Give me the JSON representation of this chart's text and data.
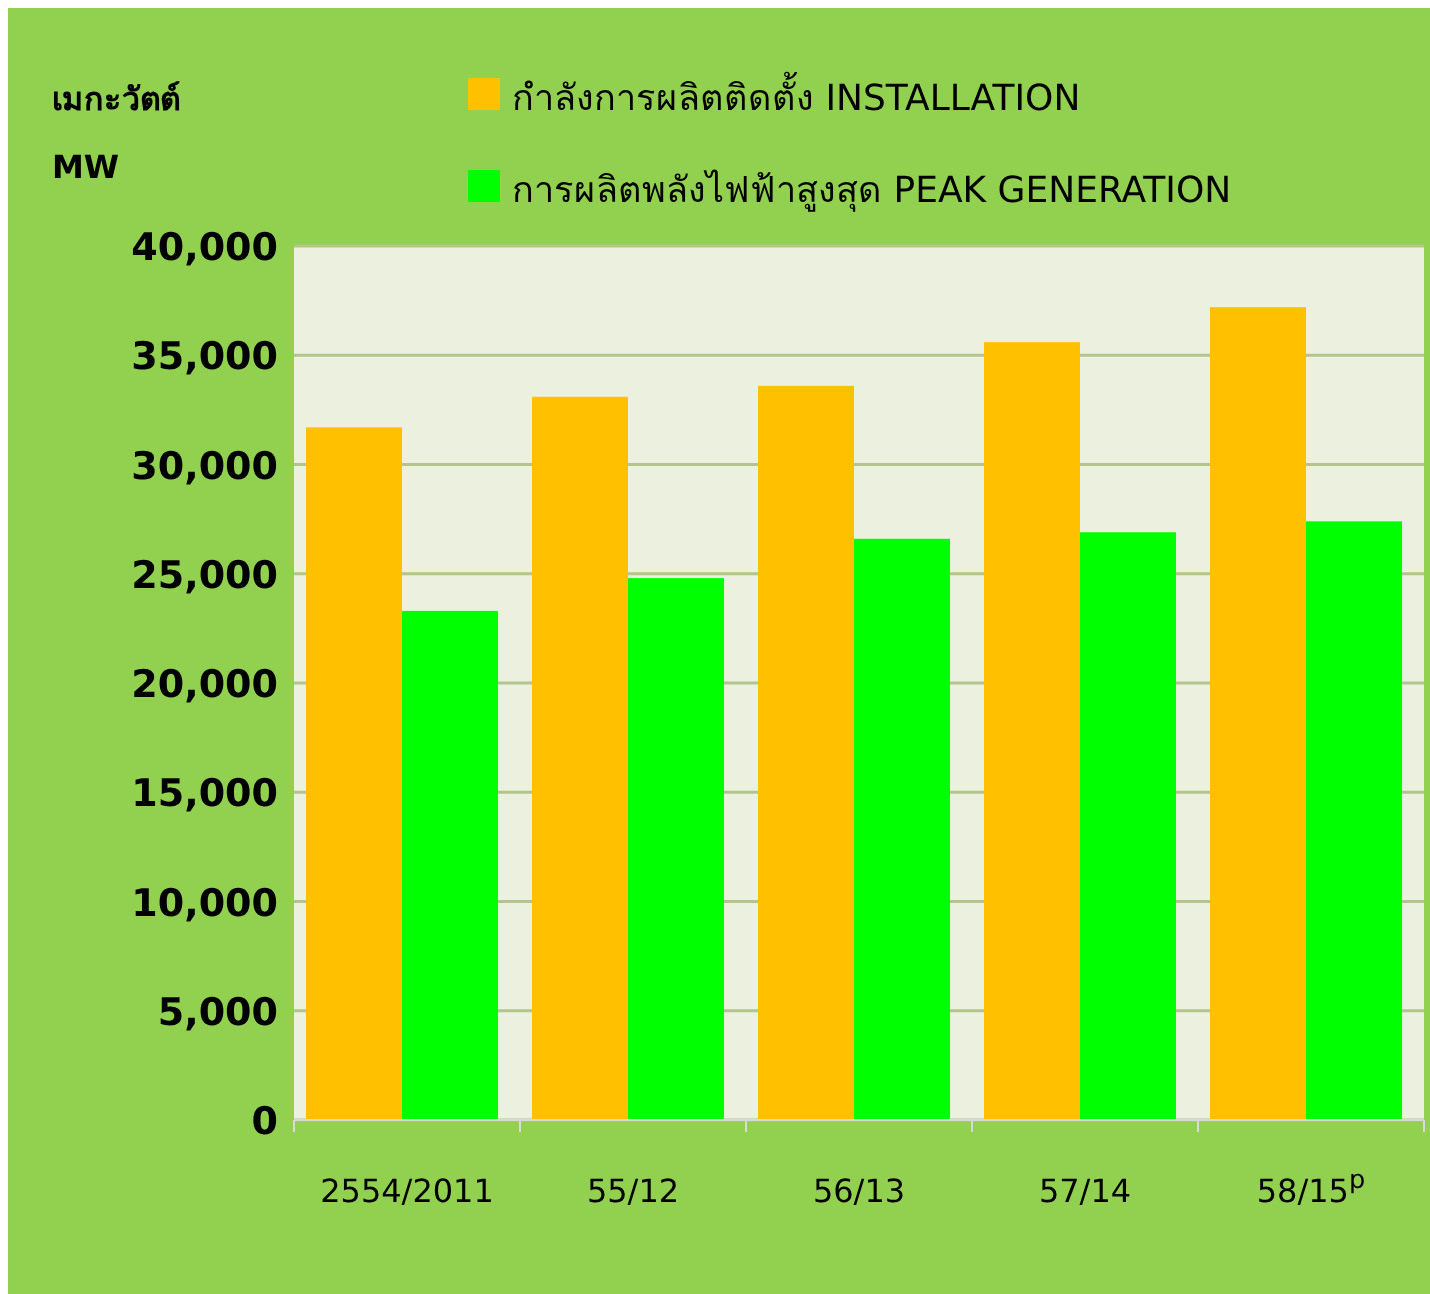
{
  "chart_data": {
    "type": "bar",
    "ylabel": "เมกะวัตต์\nMW",
    "categories": [
      "2554/2011",
      "55/12",
      "56/13",
      "57/14",
      "58/15$^{p}$"
    ],
    "series": [
      {
        "name": "กำลังการผลิตติดตั้ง  INSTALLATION",
        "color": "#ffc000",
        "values": [
          31700,
          33100,
          33600,
          35600,
          37200
        ]
      },
      {
        "name": "การผลิตพลังไฟฟ้าสูงสุด PEAK GENERATION",
        "color": "#00ff00",
        "values": [
          23300,
          24800,
          26600,
          26900,
          27400
        ]
      }
    ],
    "ylim": [
      0,
      40000
    ],
    "yticks": [
      {
        "value": 0,
        "label": "0"
      },
      {
        "value": 5000,
        "label": "5,000"
      },
      {
        "value": 10000,
        "label": "10,000"
      },
      {
        "value": 15000,
        "label": "15,000"
      },
      {
        "value": 20000,
        "label": "20,000"
      },
      {
        "value": 25000,
        "label": "25,000"
      },
      {
        "value": 30000,
        "label": "30,000"
      },
      {
        "value": 35000,
        "label": "35,000"
      },
      {
        "value": 40000,
        "label": "40,000"
      }
    ],
    "grid": "y",
    "legend": "top"
  }
}
